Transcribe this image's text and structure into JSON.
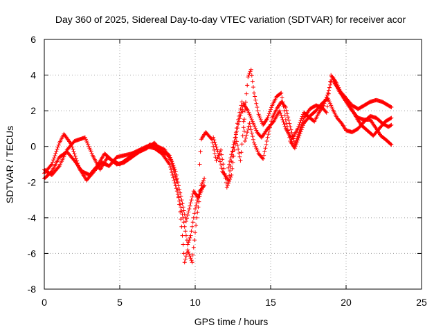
{
  "chart_data": {
    "type": "scatter",
    "title": "Day 360 of 2025, Sidereal Day-to-day VTEC variation (SDTVAR) for receiver acor",
    "xlabel": "GPS time / hours",
    "ylabel": "SDTVAR / TECUs",
    "xlim": [
      0,
      25
    ],
    "ylim": [
      -8,
      6
    ],
    "xticks": [
      0,
      5,
      10,
      15,
      20,
      25
    ],
    "yticks": [
      -8,
      -6,
      -4,
      -2,
      0,
      2,
      4,
      6
    ],
    "grid": true,
    "marker": "+",
    "color": "#ff0000",
    "series": [
      {
        "name": "track-1",
        "points": [
          [
            0,
            -1.5
          ],
          [
            0.5,
            -1.0
          ],
          [
            1.0,
            0.2
          ],
          [
            1.3,
            0.7
          ],
          [
            1.8,
            0.1
          ],
          [
            2.3,
            -1.2
          ],
          [
            2.8,
            -1.9
          ],
          [
            3.3,
            -1.4
          ],
          [
            3.8,
            -0.9
          ],
          [
            4.3,
            -1.1
          ],
          [
            4.8,
            -0.6
          ],
          [
            5.3,
            -0.5
          ],
          [
            5.8,
            -0.4
          ],
          [
            6.3,
            -0.2
          ],
          [
            6.8,
            0.0
          ],
          [
            7.3,
            -0.1
          ],
          [
            7.8,
            -0.4
          ],
          [
            8.3,
            -1.0
          ],
          [
            8.8,
            -2.5
          ],
          [
            9.2,
            -4.0
          ],
          [
            9.5,
            -5.5
          ],
          [
            9.7,
            -5.0
          ],
          [
            10.0,
            -3.5
          ],
          [
            10.3,
            -2.5
          ],
          [
            10.6,
            -2.2
          ]
        ]
      },
      {
        "name": "track-2",
        "points": [
          [
            0,
            -1.8
          ],
          [
            0.5,
            -1.4
          ],
          [
            1.0,
            -0.6
          ],
          [
            1.5,
            -0.3
          ],
          [
            2.0,
            -0.8
          ],
          [
            2.5,
            -1.4
          ],
          [
            3.0,
            -1.6
          ],
          [
            3.5,
            -1.1
          ],
          [
            4.0,
            -0.4
          ],
          [
            4.5,
            -0.8
          ],
          [
            5.0,
            -1.0
          ],
          [
            5.5,
            -0.7
          ],
          [
            6.0,
            -0.4
          ],
          [
            6.5,
            -0.2
          ],
          [
            7.0,
            0.1
          ],
          [
            7.5,
            0.0
          ],
          [
            8.0,
            -0.2
          ],
          [
            8.4,
            -0.8
          ],
          [
            8.8,
            -2.0
          ],
          [
            9.1,
            -4.5
          ],
          [
            9.3,
            -6.5
          ],
          [
            9.5,
            -5.8
          ],
          [
            9.8,
            -6.5
          ],
          [
            10.1,
            -4.0
          ],
          [
            10.4,
            -2.2
          ],
          [
            10.6,
            -1.8
          ]
        ]
      },
      {
        "name": "track-3",
        "points": [
          [
            0,
            -1.3
          ],
          [
            0.5,
            -1.6
          ],
          [
            1.0,
            -1.1
          ],
          [
            1.5,
            -0.2
          ],
          [
            2.0,
            0.3
          ],
          [
            2.7,
            0.5
          ],
          [
            3.2,
            -0.5
          ],
          [
            3.7,
            -1.3
          ],
          [
            4.2,
            -0.6
          ],
          [
            4.8,
            -1.0
          ],
          [
            5.3,
            -0.9
          ],
          [
            5.8,
            -0.6
          ],
          [
            6.3,
            -0.3
          ],
          [
            6.8,
            -0.1
          ],
          [
            7.3,
            0.2
          ],
          [
            7.8,
            -0.3
          ],
          [
            8.3,
            -0.5
          ],
          [
            8.7,
            -1.4
          ],
          [
            9.1,
            -3.0
          ],
          [
            9.4,
            -4.2
          ],
          [
            9.6,
            -3.5
          ],
          [
            9.9,
            -2.5
          ],
          [
            10.2,
            -2.9
          ],
          [
            10.5,
            -2.3
          ]
        ]
      },
      {
        "name": "track-4",
        "points": [
          [
            10.3,
            -1.0
          ],
          [
            10.4,
            0.4
          ],
          [
            10.7,
            0.8
          ],
          [
            11.1,
            0.4
          ],
          [
            11.4,
            -0.8
          ],
          [
            11.7,
            -0.2
          ],
          [
            12.1,
            -2.3
          ],
          [
            12.4,
            -1.6
          ],
          [
            12.7,
            0.5
          ],
          [
            13.0,
            -0.8
          ],
          [
            13.3,
            2.0
          ],
          [
            13.5,
            3.9
          ],
          [
            13.7,
            4.3
          ],
          [
            13.9,
            3.0
          ],
          [
            14.2,
            1.8
          ],
          [
            14.5,
            1.2
          ],
          [
            14.8,
            1.6
          ],
          [
            15.1,
            2.3
          ],
          [
            15.4,
            2.8
          ],
          [
            15.7,
            3.0
          ],
          [
            16.0,
            1.5
          ],
          [
            16.3,
            0.3
          ],
          [
            16.6,
            -0.1
          ],
          [
            16.9,
            0.6
          ],
          [
            17.2,
            1.3
          ],
          [
            17.6,
            1.7
          ],
          [
            18.0,
            2.0
          ],
          [
            18.4,
            2.4
          ],
          [
            18.8,
            2.7
          ],
          [
            19.1,
            2.1
          ],
          [
            19.4,
            1.6
          ],
          [
            19.7,
            1.3
          ],
          [
            20.0,
            0.9
          ],
          [
            20.4,
            0.8
          ],
          [
            20.8,
            1.0
          ],
          [
            21.2,
            1.4
          ],
          [
            21.6,
            1.7
          ],
          [
            22.0,
            1.6
          ],
          [
            22.4,
            1.3
          ],
          [
            22.8,
            1.1
          ],
          [
            23.0,
            1.2
          ]
        ]
      },
      {
        "name": "track-5",
        "points": [
          [
            11.2,
            0.5
          ],
          [
            11.5,
            -0.3
          ],
          [
            11.8,
            -1.4
          ],
          [
            12.2,
            -1.9
          ],
          [
            12.5,
            -0.3
          ],
          [
            12.8,
            1.3
          ],
          [
            13.1,
            2.5
          ],
          [
            13.3,
            0.3
          ],
          [
            13.6,
            1.3
          ],
          [
            13.9,
            0.2
          ],
          [
            14.2,
            -0.4
          ],
          [
            14.5,
            -0.7
          ],
          [
            14.8,
            0.5
          ],
          [
            15.1,
            1.6
          ],
          [
            15.4,
            2.1
          ],
          [
            15.7,
            2.5
          ],
          [
            16.0,
            2.2
          ],
          [
            16.3,
            1.1
          ],
          [
            16.6,
            0.1
          ],
          [
            16.9,
            0.8
          ],
          [
            17.2,
            1.6
          ],
          [
            17.6,
            2.1
          ],
          [
            18.0,
            2.3
          ],
          [
            18.4,
            2.2
          ],
          [
            18.7,
            1.9
          ],
          [
            19.0,
            4.0
          ],
          [
            19.3,
            3.5
          ],
          [
            19.6,
            3.0
          ],
          [
            19.9,
            2.8
          ],
          [
            20.3,
            2.2
          ],
          [
            20.7,
            1.6
          ],
          [
            21.0,
            1.2
          ],
          [
            21.4,
            0.9
          ],
          [
            21.8,
            0.6
          ],
          [
            22.2,
            1.0
          ],
          [
            22.6,
            1.4
          ],
          [
            23.0,
            1.6
          ]
        ]
      },
      {
        "name": "track-6",
        "points": [
          [
            12.2,
            -1.2
          ],
          [
            12.6,
            0.3
          ],
          [
            12.9,
            1.4
          ],
          [
            13.2,
            2.4
          ],
          [
            13.5,
            2.0
          ],
          [
            13.8,
            1.4
          ],
          [
            14.1,
            0.8
          ],
          [
            14.4,
            0.5
          ],
          [
            14.8,
            1.0
          ],
          [
            15.2,
            1.4
          ],
          [
            15.6,
            2.0
          ],
          [
            16.0,
            1.0
          ],
          [
            16.4,
            0.4
          ],
          [
            16.8,
            1.0
          ],
          [
            17.2,
            1.9
          ],
          [
            17.6,
            1.6
          ],
          [
            17.9,
            1.4
          ],
          [
            18.2,
            1.9
          ],
          [
            18.5,
            2.3
          ],
          [
            18.8,
            3.0
          ],
          [
            19.1,
            3.9
          ],
          [
            19.4,
            3.5
          ],
          [
            19.7,
            2.9
          ],
          [
            20.0,
            2.5
          ],
          [
            20.4,
            2.0
          ],
          [
            20.8,
            1.6
          ],
          [
            21.2,
            1.5
          ],
          [
            21.6,
            1.5
          ],
          [
            22.0,
            1.0
          ],
          [
            22.3,
            0.6
          ],
          [
            22.6,
            0.4
          ],
          [
            23.0,
            0.1
          ]
        ]
      },
      {
        "name": "track-7",
        "points": [
          [
            19.2,
            3.6
          ],
          [
            19.6,
            3.1
          ],
          [
            20.0,
            2.7
          ],
          [
            20.4,
            2.3
          ],
          [
            20.8,
            2.1
          ],
          [
            21.2,
            2.3
          ],
          [
            21.6,
            2.5
          ],
          [
            22.0,
            2.6
          ],
          [
            22.4,
            2.5
          ],
          [
            22.8,
            2.3
          ],
          [
            23.0,
            2.2
          ]
        ]
      }
    ]
  }
}
